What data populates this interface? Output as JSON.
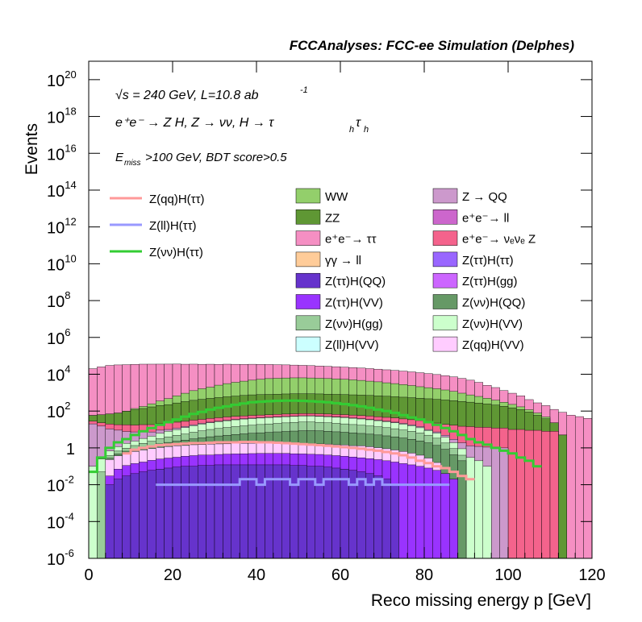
{
  "header": {
    "title": "FCCAnalyses: FCC-ee Simulation (Delphes)"
  },
  "annotations": {
    "energy_line": "√s = 240 GeV, L=10.8 ab",
    "energy_exp": "-1",
    "process_line": "e⁺e⁻ → Z H, Z → νν, H → τ",
    "process_sub": "h",
    "selection_line": "E",
    "selection_sub": "miss",
    "selection_rest": ">100 GeV, BDT score>0.5"
  },
  "chart_data": {
    "type": "histogram",
    "title": "FCCAnalyses: FCC-ee Simulation (Delphes)",
    "xlabel": "Reco missing energy p [GeV]",
    "ylabel": "Events",
    "xlim": [
      0,
      120
    ],
    "ylim": [
      1e-06,
      1e+21
    ],
    "yscale": "log",
    "x_ticks": [
      "0",
      "20",
      "40",
      "60",
      "80",
      "100",
      "120"
    ],
    "y_ticks": [
      {
        "base": "10",
        "exp": "-6"
      },
      {
        "base": "10",
        "exp": "-4"
      },
      {
        "base": "10",
        "exp": "-2"
      },
      {
        "base": "1",
        "exp": ""
      },
      {
        "base": "10",
        "exp": "2"
      },
      {
        "base": "10",
        "exp": "4"
      },
      {
        "base": "10",
        "exp": "6"
      },
      {
        "base": "10",
        "exp": "8"
      },
      {
        "base": "10",
        "exp": "10"
      },
      {
        "base": "10",
        "exp": "12"
      },
      {
        "base": "10",
        "exp": "14"
      },
      {
        "base": "10",
        "exp": "16"
      },
      {
        "base": "10",
        "exp": "18"
      },
      {
        "base": "10",
        "exp": "20"
      }
    ],
    "bin_width": 2,
    "stacked_backgrounds": [
      {
        "name": "e⁺e⁻→ ττ",
        "color": "#f58fc3",
        "values": [
          20000,
          25000,
          30000,
          32000,
          33000,
          34000,
          35000,
          35000,
          35000,
          35000,
          35000,
          34000,
          34000,
          33000,
          33000,
          32000,
          32000,
          31000,
          30000,
          30000,
          29000,
          28000,
          27000,
          26000,
          25000,
          24000,
          23000,
          22000,
          21000,
          20000,
          19000,
          18000,
          17000,
          16000,
          15000,
          14000,
          13000,
          12000,
          11000,
          10000,
          9000,
          8000,
          7000,
          6000,
          5000,
          4000,
          3000,
          2000,
          1500,
          1000,
          700,
          500,
          300,
          200,
          150,
          100,
          80,
          60,
          50,
          40
        ]
      },
      {
        "name": "WW",
        "color": "#93cf6b",
        "values": [
          0,
          0,
          0,
          0,
          0,
          20,
          40,
          80,
          150,
          250,
          400,
          600,
          900,
          1200,
          1500,
          2000,
          2500,
          3000,
          3500,
          4000,
          4500,
          5000,
          5200,
          5400,
          5500,
          5500,
          5400,
          5200,
          5000,
          4800,
          4500,
          4200,
          3900,
          3500,
          3200,
          2800,
          2500,
          2200,
          1900,
          1600,
          1400,
          1200,
          1000,
          800,
          600,
          450,
          350,
          250,
          180,
          120,
          80,
          50,
          30,
          20,
          10,
          0,
          0,
          0,
          0,
          0
        ]
      },
      {
        "name": "ZZ",
        "color": "#5f9734",
        "values": [
          30,
          40,
          50,
          60,
          80,
          100,
          120,
          150,
          180,
          200,
          250,
          300,
          350,
          400,
          450,
          500,
          550,
          600,
          650,
          700,
          720,
          740,
          760,
          780,
          800,
          800,
          790,
          780,
          760,
          740,
          720,
          700,
          680,
          650,
          620,
          590,
          560,
          530,
          500,
          470,
          440,
          410,
          380,
          350,
          320,
          290,
          260,
          230,
          200,
          170,
          140,
          110,
          80,
          50,
          30,
          15,
          5,
          0,
          0,
          0
        ]
      },
      {
        "name": "e⁺e⁻→ νₑνₑ Z",
        "color": "#f4638c",
        "values": [
          8,
          8,
          9,
          9,
          10,
          10,
          11,
          11,
          12,
          12,
          13,
          13,
          14,
          14,
          15,
          15,
          16,
          16,
          16,
          17,
          17,
          17,
          18,
          18,
          18,
          18,
          18,
          18,
          18,
          18,
          18,
          18,
          18,
          18,
          17,
          17,
          17,
          16,
          16,
          16,
          15,
          15,
          14,
          14,
          13,
          13,
          12,
          12,
          11,
          11,
          10,
          10,
          9,
          9,
          8,
          8,
          0,
          0,
          0,
          0
        ]
      },
      {
        "name": "Z → QQ",
        "color": "#cc99cc",
        "values": [
          20,
          15,
          10,
          8,
          6,
          5,
          4,
          3,
          3,
          2,
          2,
          2,
          2,
          2,
          2,
          2,
          2,
          2,
          2,
          2,
          2,
          2,
          2,
          2,
          2,
          2,
          2,
          2,
          2,
          2,
          2,
          2,
          2,
          2,
          2,
          2,
          2,
          2,
          2,
          2,
          1,
          1,
          1,
          1,
          1,
          1,
          1,
          1,
          1,
          1,
          0,
          0,
          0,
          0,
          0,
          0,
          0,
          0,
          0,
          0
        ]
      },
      {
        "name": "Z(νν)H(VV)",
        "color": "#ccffcc",
        "values": [
          0.1,
          0.2,
          0.3,
          0.5,
          0.8,
          1,
          1.5,
          2,
          3,
          4,
          5,
          7,
          9,
          11,
          13,
          15,
          17,
          19,
          21,
          22,
          23,
          24,
          25,
          26,
          27,
          28,
          28,
          27,
          26,
          25,
          24,
          22,
          20,
          18,
          16,
          14,
          12,
          10,
          8,
          6,
          4,
          3,
          2,
          1,
          0.5,
          0.3,
          0.2,
          0.1,
          0,
          0,
          0,
          0,
          0,
          0,
          0,
          0,
          0,
          0,
          0,
          0
        ]
      },
      {
        "name": "Z(νν)H(gg)",
        "color": "#99cc99",
        "values": [
          0,
          0.05,
          0.1,
          0.2,
          0.3,
          0.5,
          0.7,
          1,
          1.5,
          2,
          2.5,
          3,
          4,
          5,
          6,
          7,
          8,
          9,
          10,
          11,
          12,
          13,
          14,
          15,
          16,
          17,
          17,
          16,
          15,
          14,
          13,
          12,
          11,
          10,
          9,
          8,
          7,
          6,
          5,
          4,
          3,
          2,
          1,
          0.5,
          0.2,
          0,
          0,
          0,
          0,
          0,
          0,
          0,
          0,
          0,
          0,
          0,
          0,
          0,
          0,
          0
        ]
      },
      {
        "name": "Z(νν)H(QQ)",
        "color": "#669966",
        "values": [
          0,
          0,
          0.05,
          0.1,
          0.15,
          0.2,
          0.3,
          0.4,
          0.6,
          0.8,
          1,
          1.3,
          1.6,
          2,
          2.4,
          2.8,
          3.2,
          3.6,
          4,
          4.4,
          4.8,
          5.2,
          5.6,
          6,
          6.4,
          6.8,
          7,
          6.8,
          6.4,
          6,
          5.6,
          5.2,
          4.8,
          4.4,
          4,
          3.6,
          3.2,
          2.8,
          2.4,
          2,
          1.6,
          1.2,
          0.8,
          0.4,
          0.2,
          0,
          0,
          0,
          0,
          0,
          0,
          0,
          0,
          0,
          0,
          0,
          0,
          0,
          0,
          0
        ]
      },
      {
        "name": "Z(qq)H(VV)",
        "color": "#ffccff",
        "values": [
          0,
          0,
          0.2,
          0.3,
          0.4,
          0.5,
          0.6,
          0.7,
          0.8,
          0.9,
          1,
          1,
          1.1,
          1.1,
          1.2,
          1.2,
          1.2,
          1.3,
          1.3,
          1.3,
          1.3,
          1.3,
          1.3,
          1.3,
          1.3,
          1.3,
          1.2,
          1.2,
          1.2,
          1.1,
          1.1,
          1,
          1,
          0.9,
          0.8,
          0.7,
          0.6,
          0.5,
          0.4,
          0.3,
          0.2,
          0.1,
          0,
          0,
          0,
          0,
          0,
          0,
          0,
          0,
          0,
          0,
          0,
          0,
          0,
          0,
          0,
          0,
          0,
          0
        ]
      },
      {
        "name": "Z(ττ)H(VV)",
        "color": "#9933ff",
        "values": [
          0,
          0,
          0.02,
          0.05,
          0.08,
          0.1,
          0.12,
          0.15,
          0.18,
          0.2,
          0.22,
          0.25,
          0.28,
          0.3,
          0.3,
          0.32,
          0.34,
          0.35,
          0.36,
          0.37,
          0.38,
          0.38,
          0.38,
          0.38,
          0.37,
          0.36,
          0.35,
          0.34,
          0.32,
          0.3,
          0.28,
          0.26,
          0.24,
          0.22,
          0.2,
          0.18,
          0.16,
          0.14,
          0.12,
          0.1,
          0.08,
          0.06,
          0.04,
          0.02,
          0,
          0,
          0,
          0,
          0,
          0,
          0,
          0,
          0,
          0,
          0,
          0,
          0,
          0,
          0,
          0
        ]
      },
      {
        "name": "Z(ττ)H(QQ)",
        "color": "#6633cc",
        "values": [
          0,
          0,
          0.01,
          0.02,
          0.03,
          0.04,
          0.05,
          0.06,
          0.07,
          0.08,
          0.09,
          0.1,
          0.1,
          0.11,
          0.11,
          0.12,
          0.12,
          0.12,
          0.12,
          0.12,
          0.12,
          0.12,
          0.12,
          0.12,
          0.11,
          0.11,
          0.1,
          0.1,
          0.09,
          0.08,
          0.07,
          0.06,
          0.05,
          0.04,
          0.03,
          0.02,
          0.01,
          0,
          0,
          0,
          0,
          0,
          0,
          0,
          0,
          0,
          0,
          0,
          0,
          0,
          0,
          0,
          0,
          0,
          0,
          0,
          0,
          0,
          0,
          0
        ]
      }
    ],
    "legend_entries_only": [
      {
        "name": "γγ → ll",
        "color": "#ffcc99"
      },
      {
        "name": "e⁺e⁻→ ll",
        "color": "#cc66cc"
      },
      {
        "name": "Z(ττ)H(ττ)",
        "color": "#9966ff"
      },
      {
        "name": "Z(ττ)H(gg)",
        "color": "#cc66ff"
      },
      {
        "name": "Z(ll)H(VV)",
        "color": "#ccffff"
      }
    ],
    "legend_order_col1": [
      "WW",
      "ZZ",
      "e⁺e⁻→ ττ",
      "γγ → ll",
      "Z(ττ)H(QQ)",
      "Z(ττ)H(VV)",
      "Z(νν)H(gg)",
      "Z(ll)H(VV)"
    ],
    "legend_order_col2": [
      "Z → QQ",
      "e⁺e⁻→ ll",
      "e⁺e⁻→ νₑνₑ Z",
      "Z(ττ)H(ττ)",
      "Z(ττ)H(gg)",
      "Z(νν)H(QQ)",
      "Z(νν)H(VV)",
      "Z(qq)H(VV)"
    ],
    "signals": [
      {
        "name": "Z(qq)H(ττ)",
        "color": "#ff9999",
        "x_from": 8,
        "x_to": 92,
        "values": [
          0.5,
          0.8,
          1,
          1.2,
          1.4,
          1.5,
          1.6,
          1.7,
          1.8,
          1.8,
          1.9,
          2,
          2,
          2,
          2.1,
          2.1,
          2,
          2,
          1.9,
          1.8,
          1.7,
          1.6,
          1.5,
          1.4,
          1.3,
          1.2,
          1.1,
          1,
          0.9,
          0.8,
          0.7,
          0.6,
          0.5,
          0.4,
          0.3,
          0.2,
          0.15,
          0.1,
          0.08,
          0.05,
          0.03,
          0.02
        ]
      },
      {
        "name": "Z(ll)H(ττ)",
        "color": "#9999ff",
        "x_from": 16,
        "x_to": 86,
        "values": [
          0.01,
          0.01,
          0.01,
          0.01,
          0.01,
          0.01,
          0.01,
          0.01,
          0.01,
          0.01,
          0.02,
          0.02,
          0.01,
          0.02,
          0.02,
          0.02,
          0.01,
          0.02,
          0.02,
          0.01,
          0.02,
          0.02,
          0.02,
          0.01,
          0.02,
          0.01,
          0.02,
          0.01,
          0.01,
          0.01,
          0.01,
          0.01,
          0.01,
          0.01,
          0.01
        ]
      },
      {
        "name": "Z(νν)H(ττ)",
        "color": "#33cc33",
        "x_from": 0,
        "x_to": 108,
        "values": [
          0.05,
          0.3,
          1,
          2,
          3,
          5,
          8,
          12,
          18,
          25,
          35,
          50,
          70,
          90,
          120,
          150,
          180,
          220,
          260,
          300,
          320,
          340,
          360,
          370,
          370,
          360,
          340,
          320,
          300,
          270,
          240,
          210,
          180,
          150,
          120,
          100,
          80,
          60,
          45,
          35,
          25,
          18,
          12,
          8,
          5,
          3,
          2,
          1.5,
          1,
          0.7,
          0.5,
          0.3,
          0.2,
          0.1
        ]
      }
    ]
  }
}
